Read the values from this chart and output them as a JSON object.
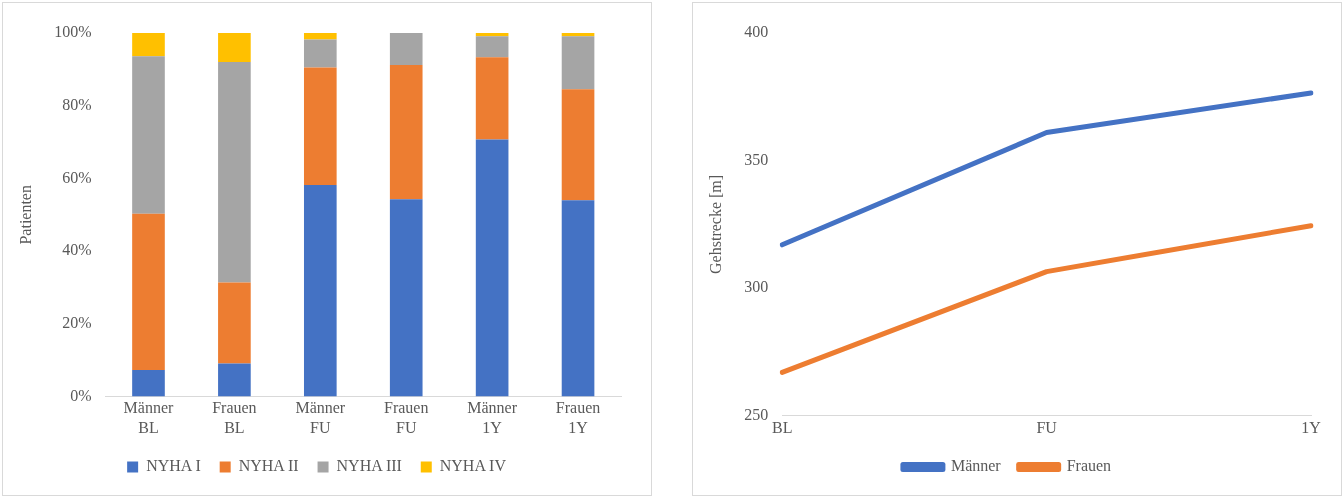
{
  "chart_data": [
    {
      "type": "bar",
      "stacked": true,
      "ylabel": "Patienten",
      "categories": [
        "Männer BL",
        "Frauen BL",
        "Männer FU",
        "Frauen FU",
        "Männer 1Y",
        "Frauen 1Y"
      ],
      "series": [
        {
          "name": "NYHA I",
          "color": "#4472c4",
          "values": [
            7.3,
            9.1,
            58.2,
            54.3,
            70.7,
            54
          ]
        },
        {
          "name": "NYHA II",
          "color": "#ed7d31",
          "values": [
            43,
            22.3,
            32.3,
            36.9,
            22.6,
            30.5
          ]
        },
        {
          "name": "NYHA III",
          "color": "#a5a5a5",
          "values": [
            43.3,
            60.6,
            7.7,
            8.8,
            5.8,
            14.6
          ]
        },
        {
          "name": "NYHA IV",
          "color": "#ffc000",
          "values": [
            6.4,
            8,
            1.8,
            0,
            0.9,
            0.9
          ]
        }
      ],
      "ylim": [
        0,
        100
      ],
      "yticks": [
        {
          "value": 0,
          "label": "0%"
        },
        {
          "value": 20,
          "label": "20%"
        },
        {
          "value": 40,
          "label": "40%"
        },
        {
          "value": 60,
          "label": "60%"
        },
        {
          "value": 80,
          "label": "80%"
        },
        {
          "value": 100,
          "label": "100%"
        }
      ],
      "grid": false,
      "legend": "bottom"
    },
    {
      "type": "line",
      "ylabel": "Gehstrecke [m]",
      "categories": [
        "BL",
        "FU",
        "1Y"
      ],
      "series": [
        {
          "name": "Männer",
          "color": "#4472c4",
          "values": [
            317,
            361,
            376.5
          ]
        },
        {
          "name": "Frauen",
          "color": "#ed7d31",
          "values": [
            267,
            306.5,
            324.5
          ]
        }
      ],
      "ylim": [
        250,
        400
      ],
      "yticks": [
        250,
        300,
        350,
        400
      ],
      "grid": false,
      "legend": "bottom",
      "marker": "none"
    }
  ]
}
